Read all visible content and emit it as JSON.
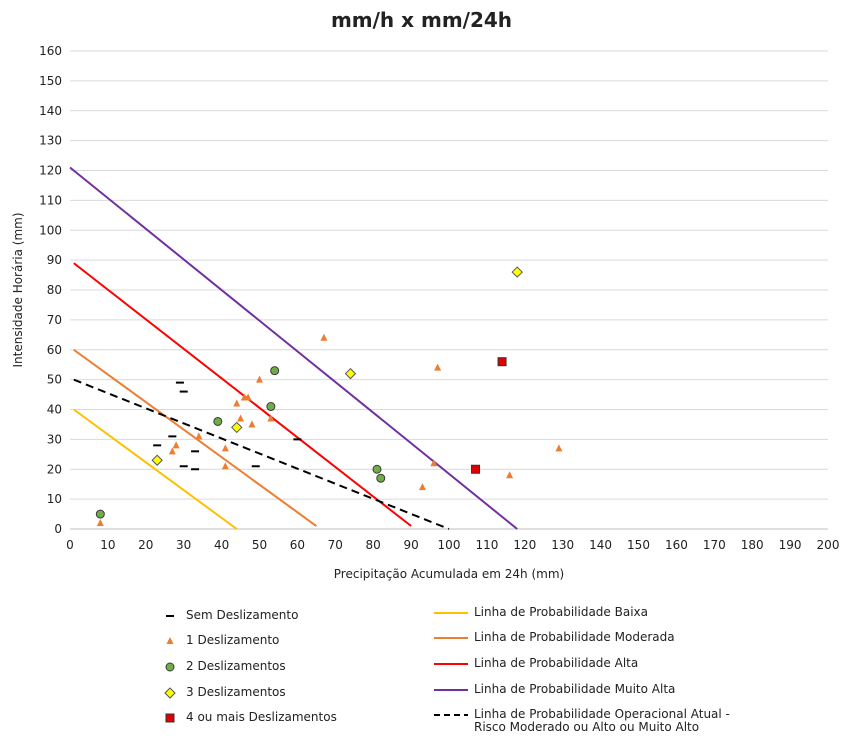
{
  "chart_data": {
    "type": "scatter",
    "title": "mm/h x mm/24h",
    "xlabel": "Precipitação Acumulada em 24h (mm)",
    "ylabel": "Intensidade Horária (mm)",
    "xlim": [
      0,
      200
    ],
    "ylim": [
      0,
      160
    ],
    "x_ticks": [
      0,
      10,
      20,
      30,
      40,
      50,
      60,
      70,
      80,
      90,
      100,
      110,
      120,
      130,
      140,
      150,
      160,
      170,
      180,
      190,
      200
    ],
    "y_ticks": [
      0,
      10,
      20,
      30,
      40,
      50,
      60,
      70,
      80,
      90,
      100,
      110,
      120,
      130,
      140,
      150,
      160
    ],
    "grid": "horizontal",
    "legend_position": "bottom",
    "series": [
      {
        "name": "Sem Deslizamento",
        "marker": "dash",
        "color": "#000000",
        "points": [
          [
            29,
            49
          ],
          [
            30,
            46
          ],
          [
            23,
            28
          ],
          [
            27,
            31
          ],
          [
            33,
            26
          ],
          [
            30,
            21
          ],
          [
            33,
            20
          ],
          [
            49,
            21
          ],
          [
            60,
            30
          ]
        ]
      },
      {
        "name": "1 Deslizamento",
        "marker": "triangle",
        "color": "#ed7d31",
        "points": [
          [
            8,
            2
          ],
          [
            27,
            26
          ],
          [
            28,
            28
          ],
          [
            34,
            31
          ],
          [
            41,
            21
          ],
          [
            41,
            27
          ],
          [
            44,
            42
          ],
          [
            45,
            37
          ],
          [
            47,
            44
          ],
          [
            46,
            44
          ],
          [
            48,
            35
          ],
          [
            50,
            50
          ],
          [
            53,
            37
          ],
          [
            67,
            64
          ],
          [
            93,
            14
          ],
          [
            96,
            22
          ],
          [
            97,
            54
          ],
          [
            116,
            18
          ],
          [
            129,
            27
          ]
        ]
      },
      {
        "name": "2 Deslizamentos",
        "marker": "circle",
        "color": "#70ad47",
        "points": [
          [
            8,
            5
          ],
          [
            39,
            36
          ],
          [
            53,
            41
          ],
          [
            54,
            53
          ],
          [
            81,
            20
          ],
          [
            82,
            17
          ]
        ]
      },
      {
        "name": "3 Deslizamentos",
        "marker": "diamond",
        "color": "#ffff00",
        "points": [
          [
            23,
            23
          ],
          [
            44,
            34
          ],
          [
            74,
            52
          ],
          [
            118,
            86
          ]
        ]
      },
      {
        "name": "4 ou mais Deslizamentos",
        "marker": "square",
        "color": "#e00000",
        "points": [
          [
            107,
            20
          ],
          [
            114,
            56
          ]
        ]
      }
    ],
    "lines": [
      {
        "name": "Linha de Probabilidade Baixa",
        "color": "#ffc000",
        "dash": false,
        "points": [
          [
            1,
            40
          ],
          [
            44,
            0
          ]
        ]
      },
      {
        "name": "Linha de Probabilidade Moderada",
        "color": "#ed7d31",
        "dash": false,
        "points": [
          [
            1,
            60
          ],
          [
            65,
            1
          ]
        ]
      },
      {
        "name": "Linha de Probabilidade Alta",
        "color": "#ff0000",
        "dash": false,
        "points": [
          [
            1,
            89
          ],
          [
            90,
            1
          ]
        ]
      },
      {
        "name": "Linha de Probabilidade Muito Alta",
        "color": "#7030a0",
        "dash": false,
        "points": [
          [
            0,
            121
          ],
          [
            118,
            0
          ]
        ]
      },
      {
        "name": "Linha de Probabilidade Operacional Atual -\nRisco Moderado ou Alto ou Muito Alto",
        "color": "#000000",
        "dash": true,
        "points": [
          [
            1,
            50
          ],
          [
            100,
            0
          ]
        ]
      }
    ]
  }
}
